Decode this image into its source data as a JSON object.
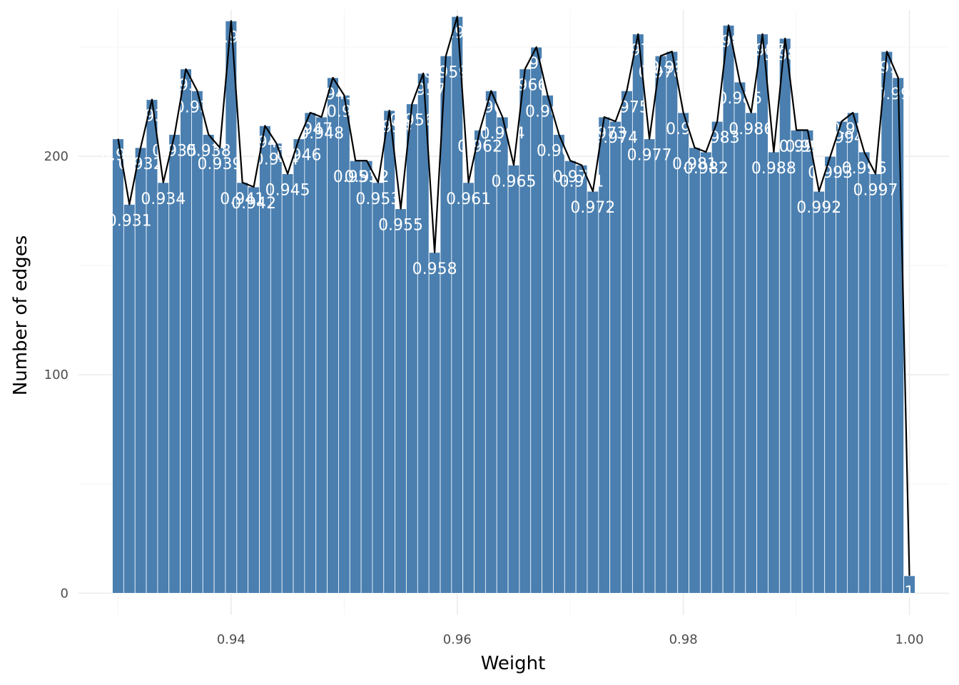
{
  "chart_data": {
    "type": "bar",
    "title": "",
    "xlabel": "Weight",
    "ylabel": "Number of edges",
    "xlim": [
      0.9265,
      1.0035
    ],
    "ylim": [
      -10,
      267
    ],
    "x_ticks": [
      0.94,
      0.96,
      0.98,
      1.0
    ],
    "x_tick_labels": [
      "0.94",
      "0.96",
      "0.98",
      "1.00"
    ],
    "y_ticks": [
      0,
      100,
      200
    ],
    "y_tick_labels": [
      "0",
      "100",
      "200"
    ],
    "grid": true,
    "bar_color": "#4a7fb0",
    "line_color": "#000000",
    "overlay": "line connecting bar tops",
    "x": [
      0.93,
      0.931,
      0.932,
      0.933,
      0.934,
      0.935,
      0.936,
      0.937,
      0.938,
      0.939,
      0.94,
      0.941,
      0.942,
      0.943,
      0.944,
      0.945,
      0.946,
      0.947,
      0.948,
      0.949,
      0.95,
      0.951,
      0.952,
      0.953,
      0.954,
      0.955,
      0.956,
      0.957,
      0.958,
      0.959,
      0.96,
      0.961,
      0.962,
      0.963,
      0.964,
      0.965,
      0.966,
      0.967,
      0.968,
      0.969,
      0.97,
      0.971,
      0.972,
      0.973,
      0.974,
      0.975,
      0.976,
      0.977,
      0.978,
      0.979,
      0.98,
      0.981,
      0.982,
      0.983,
      0.984,
      0.985,
      0.986,
      0.987,
      0.988,
      0.989,
      0.99,
      0.991,
      0.992,
      0.993,
      0.994,
      0.995,
      0.996,
      0.997,
      0.998,
      0.999,
      1.0
    ],
    "labels": [
      "0.93",
      "0.931",
      "0.932",
      "0.933",
      "0.934",
      "0.935",
      "0.936",
      "0.937",
      "0.938",
      "0.939",
      "0.94",
      "0.941",
      "0.942",
      "0.943",
      "0.944",
      "0.945",
      "0.946",
      "0.947",
      "0.948",
      "0.949",
      "0.95",
      "0.951",
      "0.952",
      "0.953",
      "0.954",
      "0.955",
      "0.956",
      "0.957",
      "0.958",
      "0.959",
      "0.96",
      "0.961",
      "0.962",
      "0.963",
      "0.964",
      "0.965",
      "0.966",
      "0.967",
      "0.968",
      "0.969",
      "0.97",
      "0.971",
      "0.972",
      "0.973",
      "0.974",
      "0.975",
      "0.976",
      "0.977",
      "0.978",
      "0.979",
      "0.98",
      "0.981",
      "0.982",
      "0.983",
      "0.984",
      "0.985",
      "0.986",
      "0.987",
      "0.988",
      "0.989",
      "0.99",
      "0.991",
      "0.992",
      "0.993",
      "0.994",
      "0.995",
      "0.996",
      "0.997",
      "0.998",
      "0.999",
      "1"
    ],
    "values": [
      208,
      178,
      204,
      226,
      188,
      210,
      240,
      230,
      210,
      204,
      262,
      188,
      186,
      214,
      206,
      192,
      208,
      220,
      218,
      236,
      228,
      198,
      198,
      188,
      221,
      176,
      224,
      238,
      156,
      246,
      264,
      188,
      212,
      230,
      218,
      196,
      240,
      250,
      228,
      210,
      198,
      196,
      184,
      218,
      216,
      230,
      256,
      208,
      246,
      248,
      220,
      204,
      202,
      216,
      260,
      234,
      220,
      256,
      202,
      254,
      212,
      212,
      184,
      200,
      216,
      220,
      202,
      192,
      248,
      236,
      8
    ]
  }
}
